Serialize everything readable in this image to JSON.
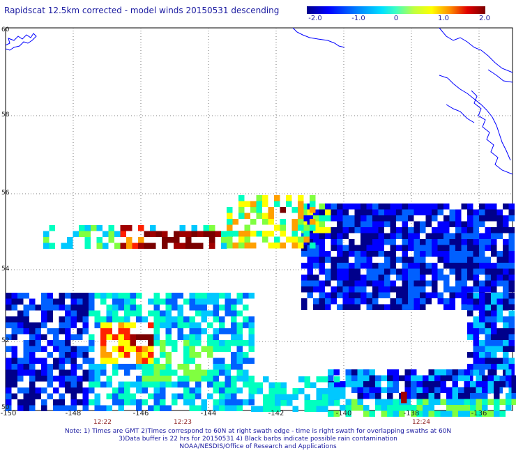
{
  "title": "Rapidscat 12.5km corrected - model winds 20150531 descending",
  "colorbar": {
    "ticks": [
      "-2.0",
      "-1.0",
      "0",
      "1.0",
      "2.0"
    ],
    "colors": [
      "#00008b",
      "#0000ff",
      "#0060ff",
      "#00c8ff",
      "#00ffc0",
      "#80ff40",
      "#ffff00",
      "#ffa000",
      "#ff2000",
      "#a00000",
      "#7a0000"
    ]
  },
  "lat_labels": [
    "60",
    "58",
    "56",
    "54",
    "52",
    "50"
  ],
  "lon_labels": [
    "-150",
    "-148",
    "-146",
    "-144",
    "-142",
    "-140",
    "-138",
    "-136"
  ],
  "time_labels": [
    "12:22",
    "12:23",
    "12:24"
  ],
  "notes": [
    "Note: 1) Times are GMT 2)Times correspond to 60N at right swath edge - time is right swath for overlapping swaths at 60N",
    "3)Data buffer is 22 hrs for 20150531 4) Black barbs indicate possible rain contamination",
    "NOAA/NESDIS/Office of Research and Applications"
  ]
}
